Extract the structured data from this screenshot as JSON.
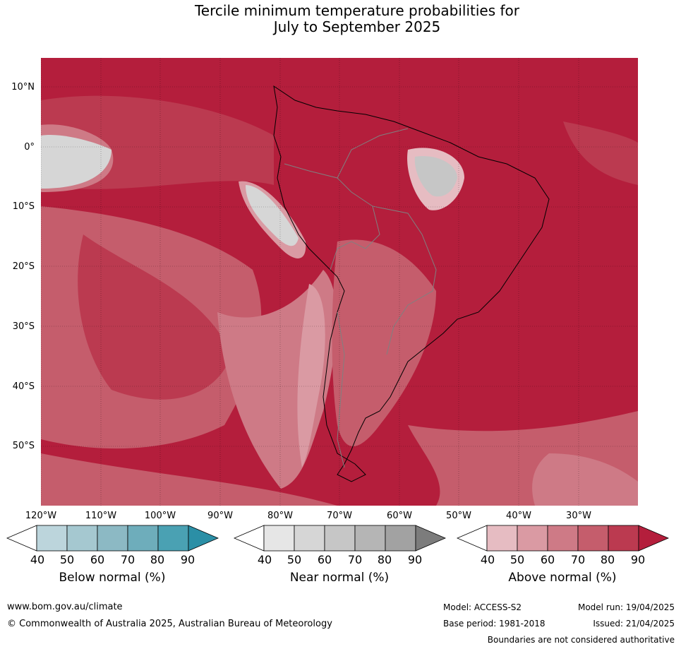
{
  "title": {
    "line1": "Tercile minimum temperature probabilities for",
    "line2": "July to September 2025"
  },
  "lat_labels": [
    {
      "text": "10°N",
      "row": 0
    },
    {
      "text": "0°",
      "row": 1
    },
    {
      "text": "10°S",
      "row": 2
    },
    {
      "text": "20°S",
      "row": 3
    },
    {
      "text": "30°S",
      "row": 4
    },
    {
      "text": "40°S",
      "row": 5
    },
    {
      "text": "50°S",
      "row": 6
    }
  ],
  "lon_labels": [
    "120°W",
    "110°W",
    "100°W",
    "90°W",
    "80°W",
    "70°W",
    "60°W",
    "50°W",
    "40°W",
    "30°W"
  ],
  "colorbars": [
    {
      "name": "below",
      "title": "Below normal (%)",
      "colors": [
        "#ffffff",
        "#bcd5dc",
        "#a5c8d0",
        "#8cb9c4",
        "#6eadbb",
        "#4aa1b3",
        "#2b8fa6"
      ],
      "ticks": [
        "40",
        "50",
        "60",
        "70",
        "80",
        "90"
      ]
    },
    {
      "name": "near",
      "title": "Near normal (%)",
      "colors": [
        "#ffffff",
        "#e6e6e6",
        "#d6d6d6",
        "#c6c6c6",
        "#b5b5b5",
        "#a2a2a2",
        "#7c7c7c"
      ],
      "ticks": [
        "40",
        "50",
        "60",
        "70",
        "80",
        "90"
      ]
    },
    {
      "name": "above",
      "title": "Above normal (%)",
      "colors": [
        "#ffffff",
        "#e6bcc2",
        "#da9aa3",
        "#ce7a86",
        "#c55d6c",
        "#bb3a50",
        "#b41e3c"
      ],
      "ticks": [
        "40",
        "50",
        "60",
        "70",
        "80",
        "90"
      ]
    }
  ],
  "footer": {
    "website": "www.bom.gov.au/climate",
    "copyright": "© Commonwealth of Australia 2025, Australian Bureau of Meteorology",
    "model": "Model: ACCESS-S2",
    "model_run": "Model run: 19/04/2025",
    "base_period": "Base period: 1981-2018",
    "issued": "Issued: 21/04/2025",
    "disclaimer": "Boundaries are not considered authoritative"
  }
}
